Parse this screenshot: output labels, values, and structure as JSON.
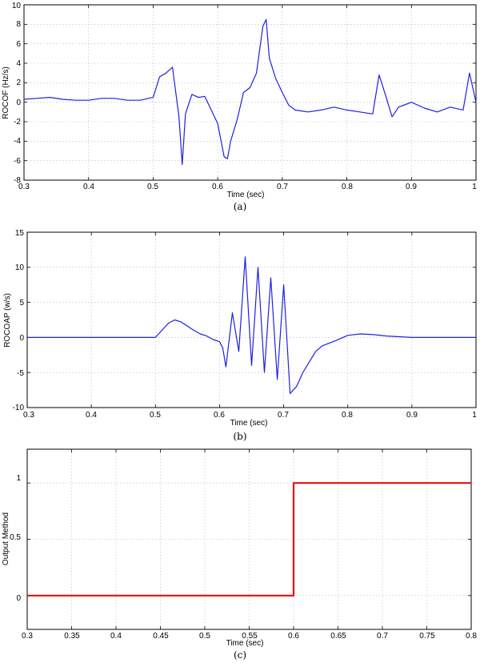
{
  "chart_data": [
    {
      "type": "line",
      "caption": "(a)",
      "xlabel": "Time (sec)",
      "ylabel": "ROCOF (Hz/s)",
      "xlim": [
        0.3,
        1.0
      ],
      "ylim": [
        -8,
        10
      ],
      "xticks": [
        "0.3",
        "0.4",
        "0.5",
        "0.6",
        "0.7",
        "0.8",
        "0.9",
        "1"
      ],
      "yticks": [
        "-8",
        "-6",
        "-4",
        "-2",
        "0",
        "2",
        "4",
        "6",
        "8",
        "10"
      ],
      "grid": true,
      "color": "#1f1fe6",
      "series": [
        {
          "x": [
            0.3,
            0.32,
            0.34,
            0.36,
            0.38,
            0.4,
            0.42,
            0.44,
            0.46,
            0.48,
            0.5,
            0.51,
            0.52,
            0.53,
            0.54,
            0.545,
            0.55,
            0.56,
            0.57,
            0.58,
            0.59,
            0.6,
            0.61,
            0.615,
            0.62,
            0.63,
            0.64,
            0.65,
            0.66,
            0.67,
            0.675,
            0.68,
            0.69,
            0.7,
            0.71,
            0.72,
            0.74,
            0.76,
            0.78,
            0.8,
            0.82,
            0.84,
            0.85,
            0.86,
            0.87,
            0.88,
            0.9,
            0.92,
            0.94,
            0.96,
            0.98,
            0.99,
            1.0
          ],
          "y": [
            0.3,
            0.4,
            0.5,
            0.3,
            0.2,
            0.2,
            0.4,
            0.4,
            0.2,
            0.2,
            0.5,
            2.6,
            3.0,
            3.6,
            -1.5,
            -6.4,
            -1.2,
            0.8,
            0.5,
            0.6,
            -0.8,
            -2.2,
            -5.6,
            -5.8,
            -4.0,
            -1.8,
            1.0,
            1.5,
            3.0,
            7.8,
            8.5,
            4.5,
            2.4,
            1.0,
            -0.3,
            -0.8,
            -1.0,
            -0.8,
            -0.5,
            -0.8,
            -1.0,
            -1.2,
            2.8,
            0.7,
            -1.5,
            -0.5,
            0.0,
            -0.6,
            -1.0,
            -0.5,
            -0.8,
            3.0,
            0.0
          ]
        }
      ]
    },
    {
      "type": "line",
      "caption": "(b)",
      "xlabel": "Time (sec)",
      "ylabel": "ROCOAP (w/s)",
      "xlim": [
        0.3,
        1.0
      ],
      "ylim": [
        -10,
        15
      ],
      "xticks": [
        "0.3",
        "0.4",
        "0.5",
        "0.6",
        "0.7",
        "0.8",
        "0.9",
        "1"
      ],
      "yticks": [
        "-10",
        "-5",
        "0",
        "5",
        "10",
        "15"
      ],
      "grid": true,
      "color": "#1f1fe6",
      "series": [
        {
          "x": [
            0.3,
            0.4,
            0.5,
            0.51,
            0.52,
            0.53,
            0.54,
            0.55,
            0.56,
            0.57,
            0.58,
            0.59,
            0.6,
            0.605,
            0.61,
            0.62,
            0.63,
            0.64,
            0.65,
            0.66,
            0.67,
            0.68,
            0.69,
            0.7,
            0.71,
            0.72,
            0.73,
            0.74,
            0.75,
            0.76,
            0.78,
            0.8,
            0.82,
            0.84,
            0.86,
            0.88,
            0.9,
            1.0
          ],
          "y": [
            0.0,
            0.0,
            0.0,
            1.0,
            2.0,
            2.5,
            2.2,
            1.6,
            1.0,
            0.5,
            0.2,
            -0.3,
            -0.6,
            -1.5,
            -4.2,
            3.5,
            -2.0,
            11.5,
            -4.0,
            10.0,
            -5.0,
            8.5,
            -6.0,
            7.5,
            -8.0,
            -7.0,
            -5.0,
            -3.5,
            -2.0,
            -1.2,
            -0.5,
            0.3,
            0.5,
            0.4,
            0.2,
            0.1,
            0.0,
            0.0
          ]
        }
      ]
    },
    {
      "type": "line",
      "caption": "(c)",
      "xlabel": "Time (sec)",
      "ylabel": "Output Method",
      "xlim": [
        0.3,
        0.8
      ],
      "ylim": [
        -0.3,
        1.3
      ],
      "xticks": [
        "0.3",
        "0.35",
        "0.4",
        "0.45",
        "0.5",
        "0.55",
        "0.6",
        "0.65",
        "0.7",
        "0.75",
        "0.8"
      ],
      "yticks": [
        "0",
        "0.5",
        "1"
      ],
      "grid": true,
      "color": "#e01010",
      "series": [
        {
          "x": [
            0.3,
            0.6,
            0.6,
            0.8
          ],
          "y": [
            0,
            0,
            1,
            1
          ]
        }
      ]
    }
  ]
}
